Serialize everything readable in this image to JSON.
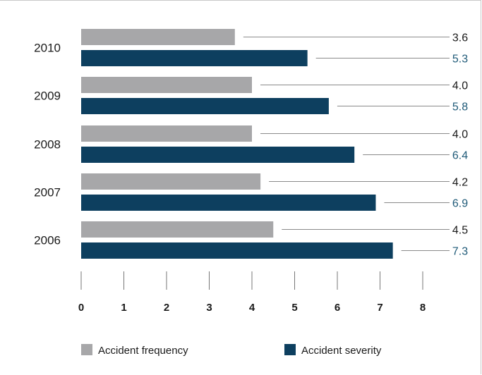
{
  "chart_data": {
    "type": "bar",
    "orientation": "horizontal",
    "categories": [
      "2010",
      "2009",
      "2008",
      "2007",
      "2006"
    ],
    "series": [
      {
        "name": "Accident frequency",
        "values": [
          3.6,
          4.0,
          4.0,
          4.2,
          4.5
        ],
        "color": "#a7a7a9"
      },
      {
        "name": "Accident severity",
        "values": [
          5.3,
          5.8,
          6.4,
          6.9,
          7.3
        ],
        "color": "#0d3f5f"
      }
    ],
    "value_labels": {
      "frequency": [
        "3.6",
        "4.0",
        "4.0",
        "4.2",
        "4.5"
      ],
      "severity": [
        "5.3",
        "5.8",
        "6.4",
        "6.9",
        "7.3"
      ]
    },
    "value_label_colors": {
      "frequency": "#1a1a1a",
      "severity": "#1f5a78"
    },
    "xlim": [
      0,
      8
    ],
    "xticks": [
      "0",
      "1",
      "2",
      "3",
      "4",
      "5",
      "6",
      "7",
      "8"
    ],
    "grid": false,
    "legend": {
      "placement": "bottom",
      "entries": [
        "Accident frequency",
        "Accident severity"
      ]
    }
  }
}
